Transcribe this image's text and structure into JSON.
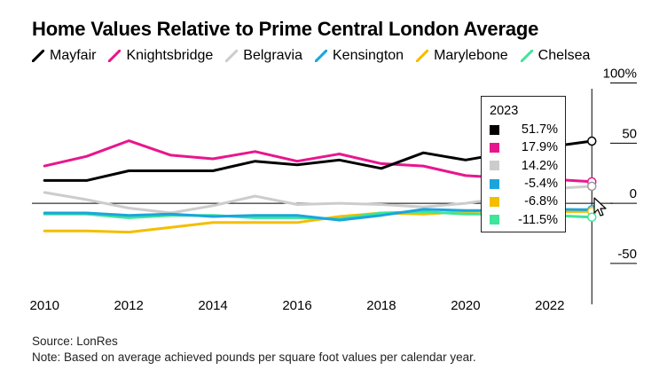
{
  "title": "Home Values Relative to Prime Central London Average",
  "source": "Source: LonRes",
  "note": "Note: Based on average achieved pounds per square foot values per calendar year.",
  "tooltip": {
    "year": "2023",
    "rows": [
      {
        "value": "51.7%",
        "color": "#000000"
      },
      {
        "value": "17.9%",
        "color": "#e8168d"
      },
      {
        "value": "14.2%",
        "color": "#cccccc"
      },
      {
        "value": "-5.4%",
        "color": "#1aa5dd"
      },
      {
        "value": "-6.8%",
        "color": "#f4be00"
      },
      {
        "value": "-11.5%",
        "color": "#3ee59a"
      }
    ]
  },
  "chart_data": {
    "type": "line",
    "title": "Home Values Relative to Prime Central London Average",
    "x": [
      2010,
      2011,
      2012,
      2013,
      2014,
      2015,
      2016,
      2017,
      2018,
      2019,
      2020,
      2021,
      2022,
      2023
    ],
    "xticks": [
      "2010",
      "2012",
      "2014",
      "2016",
      "2018",
      "2020",
      "2022"
    ],
    "xlim": [
      2009.7,
      2023.5
    ],
    "ylim": [
      -70,
      110
    ],
    "yticks": [
      {
        "value": 100,
        "label": "100%"
      },
      {
        "value": 50,
        "label": "50"
      },
      {
        "value": 0,
        "label": "0"
      },
      {
        "value": -50,
        "label": "-50"
      }
    ],
    "legend_position": "top",
    "series": [
      {
        "name": "Mayfair",
        "color": "#000000",
        "values": [
          19,
          19,
          27,
          27,
          27,
          35,
          32,
          36,
          29,
          42,
          36,
          42,
          47,
          51.7
        ]
      },
      {
        "name": "Knightsbridge",
        "color": "#e8168d",
        "values": [
          31,
          39,
          52,
          40,
          37,
          43,
          35,
          41,
          33,
          31,
          23,
          21,
          20,
          17.9
        ]
      },
      {
        "name": "Belgravia",
        "color": "#cccccc",
        "values": [
          9,
          3,
          -4,
          -8,
          -2,
          6,
          -1,
          0,
          -1,
          -3,
          0,
          5,
          12,
          14.2
        ]
      },
      {
        "name": "Kensington",
        "color": "#1aa5dd",
        "values": [
          -8,
          -8,
          -10,
          -9,
          -11,
          -10,
          -10,
          -14,
          -10,
          -5,
          -6,
          -6,
          -5,
          -5.4
        ]
      },
      {
        "name": "Marylebone",
        "color": "#f4be00",
        "values": [
          -23,
          -23,
          -24,
          -20,
          -16,
          -16,
          -16,
          -11,
          -8,
          -9,
          -7,
          -6,
          -7,
          -6.8
        ]
      },
      {
        "name": "Chelsea",
        "color": "#3ee59a",
        "values": [
          -9,
          -9,
          -12,
          -10,
          -10,
          -12,
          -12,
          -13,
          -8,
          -7,
          -9,
          -9,
          -10,
          -11.5
        ]
      }
    ]
  }
}
